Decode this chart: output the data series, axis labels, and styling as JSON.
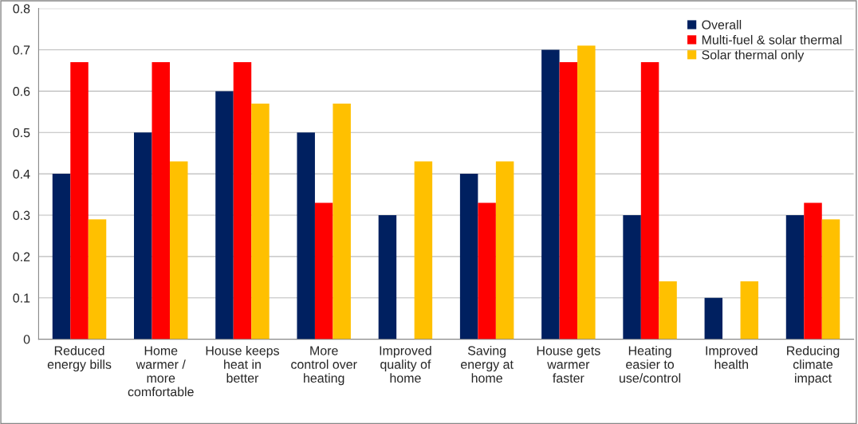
{
  "chart_data": {
    "type": "bar",
    "categories": [
      "Reduced\nenergy bills",
      "Home\nwarmer /\nmore\ncomfortable",
      "House keeps\nheat in\nbetter",
      "More\ncontrol over\nheating",
      "Improved\nquality of\nhome",
      "Saving\nenergy at\nhome",
      "House gets\nwarmer\nfaster",
      "Heating\neasier to\nuse/control",
      "Improved\nhealth",
      "Reducing\nclimate\nimpact"
    ],
    "series": [
      {
        "name": "Overall",
        "color": "#002060",
        "values": [
          0.4,
          0.5,
          0.6,
          0.5,
          0.3,
          0.4,
          0.7,
          0.3,
          0.1,
          0.3
        ]
      },
      {
        "name": "Multi-fuel & solar thermal",
        "color": "#ff0000",
        "values": [
          0.67,
          0.67,
          0.67,
          0.33,
          0,
          0.33,
          0.67,
          0.67,
          0,
          0.33
        ]
      },
      {
        "name": "Solar thermal only",
        "color": "#ffc000",
        "values": [
          0.29,
          0.43,
          0.57,
          0.57,
          0.43,
          0.43,
          0.71,
          0.14,
          0.14,
          0.29
        ]
      }
    ],
    "ylim": [
      0,
      0.8
    ],
    "yticks": [
      0,
      0.1,
      0.2,
      0.3,
      0.4,
      0.5,
      0.6,
      0.7,
      0.8
    ],
    "grid": "y",
    "legend": "top right"
  }
}
